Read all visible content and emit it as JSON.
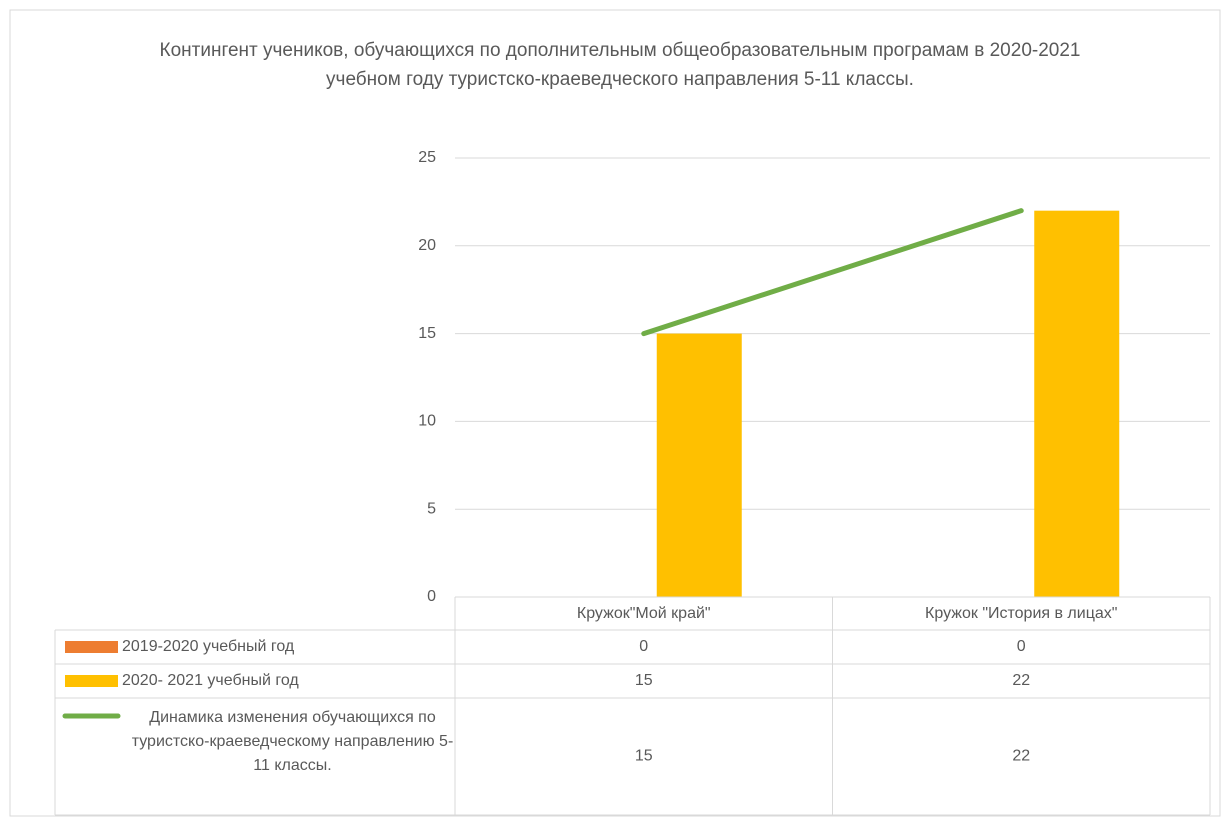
{
  "chart_data": {
    "type": "bar",
    "title": "Контингент учеников, обучающихся по дополнительным общеобразовательным програмам в 2020-2021 учебном году туристско-краеведческого направления 5-11 классы.",
    "categories": [
      "Кружок\"Мой край\"",
      "Кружок \"История в лицах\""
    ],
    "series": [
      {
        "name": "2019-2020 учебный год",
        "color": "#ed7d31",
        "type": "bar",
        "values": [
          0,
          0
        ]
      },
      {
        "name": "2020- 2021 учебный год",
        "color": "#ffc000",
        "type": "bar",
        "values": [
          15,
          22
        ]
      },
      {
        "name": "Динамика изменения обучающихся по туристско-краеведческому  направлению  5-11 классы.",
        "color": "#70ad47",
        "type": "line",
        "values": [
          15,
          22
        ]
      }
    ],
    "ylim": [
      0,
      25
    ],
    "yticks": [
      0,
      5,
      10,
      15,
      20,
      25
    ],
    "grid": true,
    "data_table": true
  }
}
